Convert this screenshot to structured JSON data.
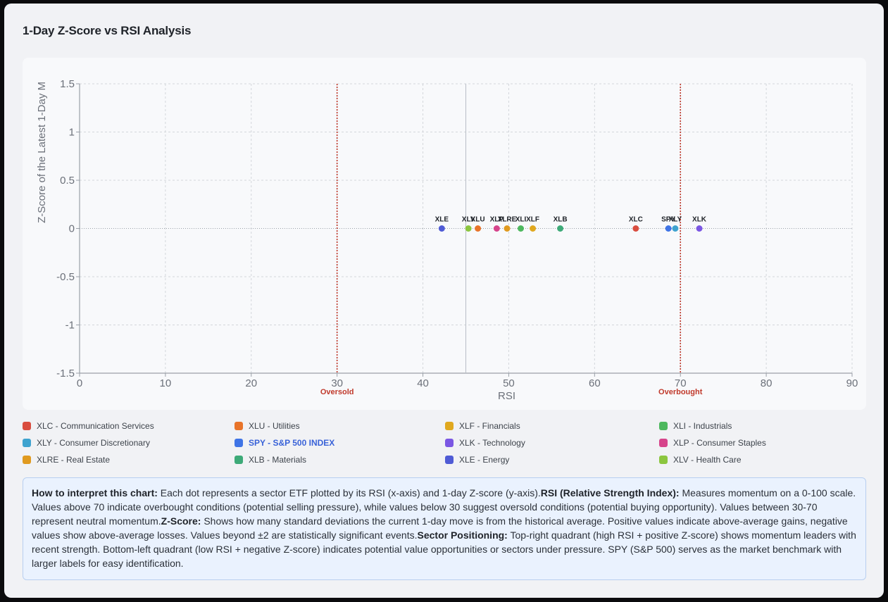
{
  "title": "1-Day Z-Score vs RSI Analysis",
  "chart_data": {
    "type": "scatter",
    "title": "",
    "xlabel": "RSI",
    "ylabel": "Z-Score of the Latest 1-Day M",
    "xlim": [
      0,
      90
    ],
    "ylim": [
      -1.5,
      1.5
    ],
    "x_ticks": [
      0,
      10,
      20,
      30,
      40,
      50,
      60,
      70,
      80,
      90
    ],
    "y_ticks": [
      1.5,
      1,
      0.5,
      0,
      -0.5,
      -1,
      -1.5
    ],
    "grid": true,
    "reference_lines": [
      {
        "x": 30,
        "label": "Oversold",
        "color": "#c0392b"
      },
      {
        "x": 70,
        "label": "Overbought",
        "color": "#c0392b"
      },
      {
        "x": 45,
        "label": "",
        "color": "#b9bec6"
      }
    ],
    "points": [
      {
        "label": "XLE",
        "x": 42.2,
        "y": 0,
        "color": "#4f5bd5"
      },
      {
        "label": "XLV",
        "x": 45.3,
        "y": 0,
        "color": "#8cc63f"
      },
      {
        "label": "XLU",
        "x": 46.4,
        "y": 0,
        "color": "#e8742a"
      },
      {
        "label": "XLP",
        "x": 48.6,
        "y": 0,
        "color": "#d6448b"
      },
      {
        "label": "XLRE",
        "x": 49.8,
        "y": 0,
        "color": "#e09a1f"
      },
      {
        "label": "XLI",
        "x": 51.4,
        "y": 0,
        "color": "#4db85e"
      },
      {
        "label": "XLF",
        "x": 52.8,
        "y": 0,
        "color": "#e0a81f"
      },
      {
        "label": "XLB",
        "x": 56.0,
        "y": 0,
        "color": "#3daa78"
      },
      {
        "label": "XLC",
        "x": 64.8,
        "y": 0,
        "color": "#d94d3f"
      },
      {
        "label": "SPY",
        "x": 68.6,
        "y": 0,
        "color": "#3f74e6"
      },
      {
        "label": "XLY",
        "x": 69.4,
        "y": 0,
        "color": "#3fa3cf"
      },
      {
        "label": "XLK",
        "x": 72.2,
        "y": 0,
        "color": "#7b57e3"
      }
    ]
  },
  "legend": [
    {
      "label": "XLC - Communication Services",
      "color": "#d94d3f"
    },
    {
      "label": "XLU - Utilities",
      "color": "#e8742a"
    },
    {
      "label": "XLF - Financials",
      "color": "#e0a81f"
    },
    {
      "label": "XLI - Industrials",
      "color": "#4db85e"
    },
    {
      "label": "XLY - Consumer Discretionary",
      "color": "#3fa3cf"
    },
    {
      "label": "SPY - S&P 500 INDEX",
      "color": "#3f74e6",
      "highlight": true
    },
    {
      "label": "XLK - Technology",
      "color": "#7b57e3"
    },
    {
      "label": "XLP - Consumer Staples",
      "color": "#d6448b"
    },
    {
      "label": "XLRE - Real Estate",
      "color": "#e09a1f"
    },
    {
      "label": "XLB - Materials",
      "color": "#3daa78"
    },
    {
      "label": "XLE - Energy",
      "color": "#4f5bd5"
    },
    {
      "label": "XLV - Health Care",
      "color": "#8cc63f"
    }
  ],
  "info": {
    "h1": "How to interpret this chart:",
    "t1": " Each dot represents a sector ETF plotted by its RSI (x-axis) and 1-day Z-score (y-axis).",
    "h2": "RSI (Relative Strength Index):",
    "t2": " Measures momentum on a 0-100 scale. Values above 70 indicate overbought conditions (potential selling pressure), while values below 30 suggest oversold conditions (potential buying opportunity). Values between 30-70 represent neutral momentum.",
    "h3": "Z-Score:",
    "t3": " Shows how many standard deviations the current 1-day move is from the historical average. Positive values indicate above-average gains, negative values show above-average losses. Values beyond ±2 are statistically significant events.",
    "h4": "Sector Positioning:",
    "t4": " Top-right quadrant (high RSI + positive Z-score) shows momentum leaders with recent strength. Bottom-left quadrant (low RSI + negative Z-score) indicates potential value opportunities or sectors under pressure. SPY (S&P 500) serves as the market benchmark with larger labels for easy identification."
  }
}
